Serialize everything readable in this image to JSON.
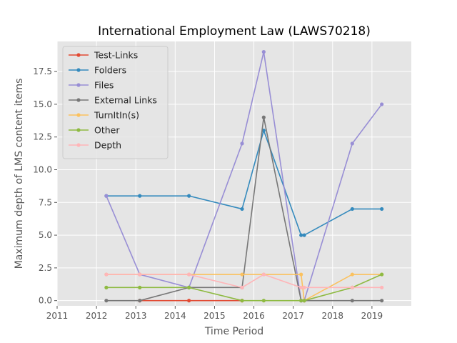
{
  "chart_data": {
    "type": "line",
    "title": "International Employment Law (LAWS70218)",
    "xlabel": "Time Period",
    "ylabel": "Maximum depth of LMS content items",
    "xlim": [
      2011.0,
      2020.0
    ],
    "ylim": [
      -0.4,
      19.8
    ],
    "xticks": [
      2011,
      2012,
      2013,
      2014,
      2015,
      2016,
      2017,
      2018,
      2019
    ],
    "yticks": [
      0.0,
      2.5,
      5.0,
      7.5,
      10.0,
      12.5,
      15.0,
      17.5
    ],
    "ytick_labels": [
      "0.0",
      "2.5",
      "5.0",
      "7.5",
      "10.0",
      "12.5",
      "15.0",
      "17.5"
    ],
    "grid": true,
    "legend_position": "upper-left",
    "series": [
      {
        "name": "Test-Links",
        "color": "#e24a33",
        "points": [
          [
            2013.1,
            0
          ],
          [
            2014.35,
            0
          ],
          [
            2015.7,
            0
          ]
        ]
      },
      {
        "name": "Folders",
        "color": "#348abd",
        "points": [
          [
            2012.25,
            8
          ],
          [
            2013.1,
            8
          ],
          [
            2014.35,
            8
          ],
          [
            2015.7,
            7
          ],
          [
            2016.25,
            13
          ],
          [
            2017.2,
            5
          ],
          [
            2017.28,
            5
          ],
          [
            2018.5,
            7
          ],
          [
            2019.25,
            7
          ]
        ]
      },
      {
        "name": "Files",
        "color": "#988ed5",
        "points": [
          [
            2012.25,
            8
          ],
          [
            2013.1,
            2
          ],
          [
            2014.35,
            1
          ],
          [
            2015.7,
            12
          ],
          [
            2016.25,
            19
          ],
          [
            2017.2,
            0
          ],
          [
            2017.28,
            0
          ],
          [
            2018.5,
            12
          ],
          [
            2019.25,
            15
          ]
        ]
      },
      {
        "name": "External Links",
        "color": "#777777",
        "points": [
          [
            2012.25,
            0
          ],
          [
            2013.1,
            0
          ],
          [
            2014.35,
            1
          ],
          [
            2015.7,
            1
          ],
          [
            2016.25,
            14
          ],
          [
            2017.2,
            0
          ],
          [
            2017.28,
            0
          ],
          [
            2018.5,
            0
          ],
          [
            2019.25,
            0
          ]
        ]
      },
      {
        "name": "TurnItIn(s)",
        "color": "#fbc15e",
        "points": [
          [
            2012.25,
            2
          ],
          [
            2013.1,
            2
          ],
          [
            2014.35,
            2
          ],
          [
            2015.7,
            2
          ],
          [
            2016.25,
            2
          ],
          [
            2017.2,
            2
          ],
          [
            2017.28,
            0
          ],
          [
            2018.5,
            2
          ],
          [
            2019.25,
            2
          ]
        ]
      },
      {
        "name": "Other",
        "color": "#8eba42",
        "points": [
          [
            2012.25,
            1
          ],
          [
            2013.1,
            1
          ],
          [
            2014.35,
            1
          ],
          [
            2015.7,
            0
          ],
          [
            2016.25,
            0
          ],
          [
            2017.2,
            0
          ],
          [
            2017.28,
            0
          ],
          [
            2018.5,
            1
          ],
          [
            2019.25,
            2
          ]
        ]
      },
      {
        "name": "Depth",
        "color": "#ffb5b8",
        "points": [
          [
            2012.25,
            2
          ],
          [
            2013.1,
            2
          ],
          [
            2014.35,
            2
          ],
          [
            2015.7,
            1
          ],
          [
            2016.25,
            2
          ],
          [
            2017.2,
            1
          ],
          [
            2017.28,
            1
          ],
          [
            2018.5,
            1
          ],
          [
            2019.25,
            1
          ]
        ]
      }
    ]
  }
}
